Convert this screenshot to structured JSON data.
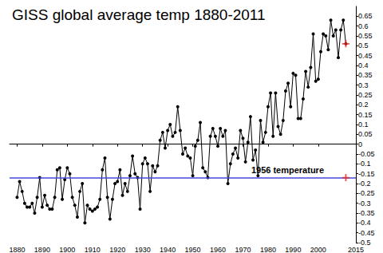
{
  "chart_data": {
    "type": "line",
    "title": "GISS global average temp 1880-2011",
    "x": [
      1880,
      1881,
      1882,
      1883,
      1884,
      1885,
      1886,
      1887,
      1888,
      1889,
      1890,
      1891,
      1892,
      1893,
      1894,
      1895,
      1896,
      1897,
      1898,
      1899,
      1900,
      1901,
      1902,
      1903,
      1904,
      1905,
      1906,
      1907,
      1908,
      1909,
      1910,
      1911,
      1912,
      1913,
      1914,
      1915,
      1916,
      1917,
      1918,
      1919,
      1920,
      1921,
      1922,
      1923,
      1924,
      1925,
      1926,
      1927,
      1928,
      1929,
      1930,
      1931,
      1932,
      1933,
      1934,
      1935,
      1936,
      1937,
      1938,
      1939,
      1940,
      1941,
      1942,
      1943,
      1944,
      1945,
      1946,
      1947,
      1948,
      1949,
      1950,
      1951,
      1952,
      1953,
      1954,
      1955,
      1956,
      1957,
      1958,
      1959,
      1960,
      1961,
      1962,
      1963,
      1964,
      1965,
      1966,
      1967,
      1968,
      1969,
      1970,
      1971,
      1972,
      1973,
      1974,
      1975,
      1976,
      1977,
      1978,
      1979,
      1980,
      1981,
      1982,
      1983,
      1984,
      1985,
      1986,
      1987,
      1988,
      1989,
      1990,
      1991,
      1992,
      1993,
      1994,
      1995,
      1996,
      1997,
      1998,
      1999,
      2000,
      2001,
      2002,
      2003,
      2004,
      2005,
      2006,
      2007,
      2008,
      2009,
      2010,
      2011
    ],
    "values": [
      -0.27,
      -0.19,
      -0.24,
      -0.3,
      -0.32,
      -0.32,
      -0.3,
      -0.35,
      -0.27,
      -0.17,
      -0.32,
      -0.26,
      -0.31,
      -0.33,
      -0.33,
      -0.27,
      -0.13,
      -0.12,
      -0.28,
      -0.18,
      -0.12,
      -0.15,
      -0.27,
      -0.31,
      -0.37,
      -0.24,
      -0.2,
      -0.4,
      -0.31,
      -0.33,
      -0.34,
      -0.33,
      -0.32,
      -0.28,
      -0.13,
      -0.07,
      -0.27,
      -0.38,
      -0.28,
      -0.2,
      -0.19,
      -0.13,
      -0.26,
      -0.2,
      -0.24,
      -0.16,
      -0.06,
      -0.15,
      -0.17,
      -0.33,
      -0.1,
      -0.07,
      -0.1,
      -0.24,
      -0.11,
      -0.14,
      -0.11,
      0.02,
      0.06,
      -0.02,
      0.07,
      0.1,
      0.04,
      0.06,
      0.19,
      0.07,
      -0.05,
      -0.02,
      -0.06,
      -0.07,
      -0.16,
      -0.01,
      0.02,
      0.11,
      -0.12,
      -0.14,
      -0.17,
      0.04,
      0.08,
      0.04,
      -0.01,
      0.08,
      0.04,
      0.07,
      -0.2,
      -0.1,
      -0.05,
      -0.02,
      -0.07,
      0.07,
      0.03,
      -0.09,
      0.01,
      0.14,
      -0.08,
      -0.03,
      -0.16,
      0.12,
      0.01,
      0.06,
      0.19,
      0.26,
      0.04,
      0.26,
      0.09,
      0.05,
      0.12,
      0.27,
      0.31,
      0.19,
      0.36,
      0.35,
      0.13,
      0.13,
      0.23,
      0.37,
      0.29,
      0.39,
      0.56,
      0.32,
      0.33,
      0.47,
      0.56,
      0.55,
      0.48,
      0.63,
      0.55,
      0.58,
      0.44,
      0.58,
      0.63,
      0.51
    ],
    "color": "#000000",
    "marker": "circle",
    "reference_line": {
      "label": "1956 temperature",
      "value": -0.17,
      "color": "#4646dc"
    },
    "xlim": [
      1877,
      2015
    ],
    "xticks": [
      1880,
      1890,
      1900,
      1910,
      1920,
      1930,
      1940,
      1950,
      1960,
      1970,
      1980,
      1990,
      2000,
      2015
    ],
    "ylim": [
      -0.5,
      0.7
    ],
    "yticks": [
      -0.5,
      -0.45,
      -0.4,
      -0.35,
      -0.3,
      -0.25,
      -0.2,
      -0.15,
      -0.1,
      -0.05,
      0,
      0.05,
      0.1,
      0.15,
      0.2,
      0.25,
      0.3,
      0.35,
      0.4,
      0.45,
      0.5,
      0.55,
      0.6,
      0.65
    ],
    "grid": false
  }
}
